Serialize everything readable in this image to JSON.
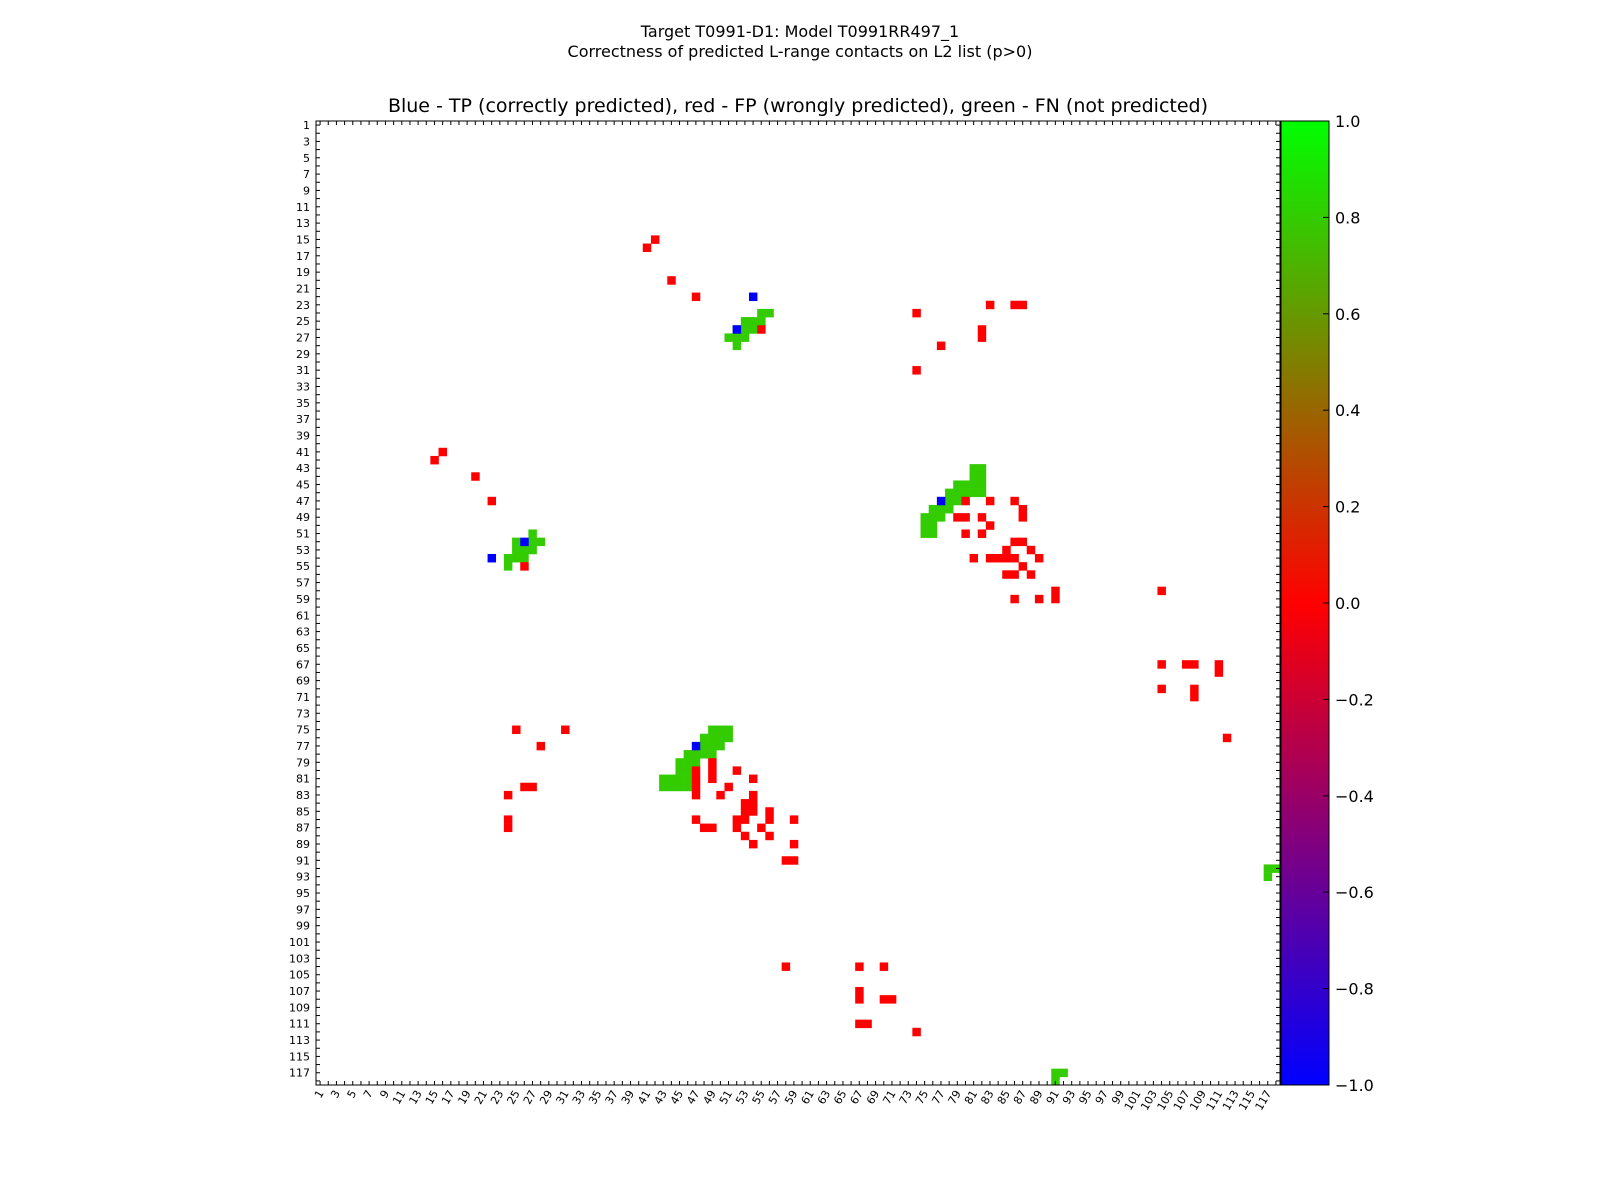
{
  "title_line1": "Target T0991-D1: Model T0991RR497_1",
  "title_line2": "Correctness of predicted L-range contacts on L2 list (p>0)",
  "axes_title": "Blue - TP (correctly predicted), red - FP (wrongly predicted), green - FN (not predicted)",
  "colors": {
    "tp": "#0000ff",
    "fp": "#ff0000",
    "fn": "#33cc00",
    "cb_top": "#00ff00",
    "cb_mid": "#ff0000",
    "cb_bottom": "#0000ff"
  },
  "chart_data": {
    "type": "heatmap",
    "n": 118,
    "xlim": [
      1,
      118
    ],
    "ylim": [
      1,
      118
    ],
    "tick_labels": [
      "1",
      "3",
      "5",
      "7",
      "9",
      "11",
      "13",
      "15",
      "17",
      "19",
      "21",
      "23",
      "25",
      "27",
      "29",
      "31",
      "33",
      "35",
      "37",
      "39",
      "41",
      "43",
      "45",
      "47",
      "49",
      "51",
      "53",
      "55",
      "57",
      "59",
      "61",
      "63",
      "65",
      "67",
      "69",
      "71",
      "73",
      "75",
      "77",
      "79",
      "81",
      "83",
      "85",
      "87",
      "89",
      "91",
      "93",
      "95",
      "97",
      "99",
      "101",
      "103",
      "105",
      "107",
      "109",
      "111",
      "113",
      "115",
      "117"
    ],
    "colorbar": {
      "min": -1.0,
      "max": 1.0,
      "ticks": [
        "1.0",
        "0.8",
        "0.6",
        "0.4",
        "0.2",
        "0.0",
        "−0.2",
        "−0.4",
        "−0.6",
        "−0.8",
        "−1.0"
      ]
    },
    "tp": [
      [
        54,
        22
      ],
      [
        52,
        26
      ],
      [
        77,
        47
      ],
      [
        26,
        52
      ],
      [
        22,
        54
      ],
      [
        47,
        77
      ]
    ],
    "fn": [
      [
        55,
        24
      ],
      [
        56,
        24
      ],
      [
        53,
        25
      ],
      [
        54,
        25
      ],
      [
        55,
        25
      ],
      [
        52,
        26
      ],
      [
        53,
        26
      ],
      [
        54,
        26
      ],
      [
        51,
        27
      ],
      [
        52,
        27
      ],
      [
        53,
        27
      ],
      [
        52,
        28
      ],
      [
        81,
        43
      ],
      [
        82,
        43
      ],
      [
        81,
        44
      ],
      [
        82,
        44
      ],
      [
        79,
        45
      ],
      [
        80,
        45
      ],
      [
        81,
        45
      ],
      [
        82,
        45
      ],
      [
        78,
        46
      ],
      [
        79,
        46
      ],
      [
        80,
        46
      ],
      [
        81,
        46
      ],
      [
        82,
        46
      ],
      [
        78,
        47
      ],
      [
        79,
        47
      ],
      [
        76,
        48
      ],
      [
        77,
        48
      ],
      [
        78,
        48
      ],
      [
        75,
        49
      ],
      [
        76,
        49
      ],
      [
        77,
        49
      ],
      [
        75,
        50
      ],
      [
        76,
        50
      ],
      [
        75,
        51
      ],
      [
        76,
        51
      ],
      [
        27,
        51
      ],
      [
        25,
        52
      ],
      [
        27,
        52
      ],
      [
        28,
        52
      ],
      [
        25,
        53
      ],
      [
        26,
        53
      ],
      [
        27,
        53
      ],
      [
        24,
        54
      ],
      [
        25,
        54
      ],
      [
        26,
        54
      ],
      [
        24,
        55
      ],
      [
        49,
        75
      ],
      [
        50,
        75
      ],
      [
        51,
        75
      ],
      [
        48,
        76
      ],
      [
        49,
        76
      ],
      [
        50,
        76
      ],
      [
        51,
        76
      ],
      [
        48,
        77
      ],
      [
        49,
        77
      ],
      [
        50,
        77
      ],
      [
        46,
        78
      ],
      [
        47,
        78
      ],
      [
        48,
        78
      ],
      [
        49,
        78
      ],
      [
        45,
        79
      ],
      [
        46,
        79
      ],
      [
        47,
        79
      ],
      [
        45,
        80
      ],
      [
        46,
        80
      ],
      [
        43,
        81
      ],
      [
        44,
        81
      ],
      [
        45,
        81
      ],
      [
        46,
        81
      ],
      [
        43,
        82
      ],
      [
        44,
        82
      ],
      [
        45,
        82
      ],
      [
        46,
        82
      ],
      [
        117,
        92
      ],
      [
        118,
        92
      ],
      [
        117,
        93
      ],
      [
        91,
        117
      ],
      [
        92,
        117
      ],
      [
        91,
        118
      ]
    ],
    "fp": [
      [
        42,
        15
      ],
      [
        41,
        16
      ],
      [
        44,
        20
      ],
      [
        47,
        22
      ],
      [
        83,
        23
      ],
      [
        86,
        23
      ],
      [
        87,
        23
      ],
      [
        74,
        24
      ],
      [
        55,
        26
      ],
      [
        82,
        26
      ],
      [
        82,
        27
      ],
      [
        77,
        28
      ],
      [
        74,
        31
      ],
      [
        16,
        41
      ],
      [
        15,
        42
      ],
      [
        20,
        44
      ],
      [
        22,
        47
      ],
      [
        80,
        47
      ],
      [
        83,
        47
      ],
      [
        86,
        47
      ],
      [
        87,
        48
      ],
      [
        79,
        49
      ],
      [
        80,
        49
      ],
      [
        82,
        49
      ],
      [
        87,
        49
      ],
      [
        83,
        50
      ],
      [
        80,
        51
      ],
      [
        82,
        51
      ],
      [
        86,
        52
      ],
      [
        87,
        52
      ],
      [
        85,
        53
      ],
      [
        88,
        53
      ],
      [
        81,
        54
      ],
      [
        83,
        54
      ],
      [
        84,
        54
      ],
      [
        85,
        54
      ],
      [
        86,
        54
      ],
      [
        89,
        54
      ],
      [
        87,
        55
      ],
      [
        85,
        56
      ],
      [
        86,
        56
      ],
      [
        88,
        56
      ],
      [
        91,
        58
      ],
      [
        86,
        59
      ],
      [
        89,
        59
      ],
      [
        91,
        59
      ],
      [
        104,
        58
      ],
      [
        104,
        67
      ],
      [
        107,
        67
      ],
      [
        108,
        67
      ],
      [
        111,
        67
      ],
      [
        111,
        68
      ],
      [
        104,
        70
      ],
      [
        108,
        70
      ],
      [
        108,
        71
      ],
      [
        112,
        76
      ],
      [
        26,
        55
      ],
      [
        25,
        75
      ],
      [
        31,
        75
      ],
      [
        28,
        77
      ],
      [
        47,
        80
      ],
      [
        49,
        80
      ],
      [
        52,
        80
      ],
      [
        49,
        81
      ],
      [
        49,
        79
      ],
      [
        47,
        81
      ],
      [
        54,
        81
      ],
      [
        26,
        82
      ],
      [
        27,
        82
      ],
      [
        47,
        82
      ],
      [
        51,
        82
      ],
      [
        50,
        83
      ],
      [
        54,
        83
      ],
      [
        24,
        83
      ],
      [
        47,
        83
      ],
      [
        53,
        84
      ],
      [
        54,
        84
      ],
      [
        53,
        85
      ],
      [
        54,
        85
      ],
      [
        56,
        85
      ],
      [
        56,
        86
      ],
      [
        24,
        86
      ],
      [
        47,
        86
      ],
      [
        52,
        86
      ],
      [
        53,
        86
      ],
      [
        52,
        87
      ],
      [
        55,
        87
      ],
      [
        59,
        86
      ],
      [
        24,
        87
      ],
      [
        48,
        87
      ],
      [
        49,
        87
      ],
      [
        53,
        88
      ],
      [
        56,
        88
      ],
      [
        54,
        89
      ],
      [
        59,
        89
      ],
      [
        58,
        91
      ],
      [
        59,
        91
      ],
      [
        58,
        104
      ],
      [
        67,
        104
      ],
      [
        70,
        104
      ],
      [
        67,
        107
      ],
      [
        67,
        108
      ],
      [
        70,
        108
      ],
      [
        71,
        108
      ],
      [
        67,
        111
      ],
      [
        68,
        111
      ],
      [
        74,
        112
      ]
    ]
  }
}
